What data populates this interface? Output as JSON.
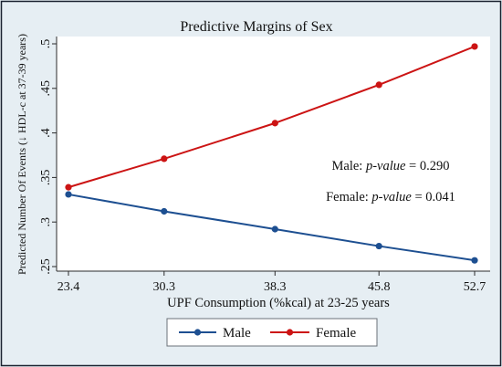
{
  "chart_data": {
    "type": "line",
    "title": "Predictive Margins of Sex",
    "xlabel": "UPF Consumption (%kcal) at 23-25 years",
    "ylabel": "Predicted Number Of Events (↓ HDL-c at 37-39 years)",
    "x": [
      23.4,
      30.3,
      38.3,
      45.8,
      52.7
    ],
    "xticks": [
      23.4,
      30.3,
      38.3,
      45.8,
      52.7
    ],
    "xticklabels": [
      "23.4",
      "30.3",
      "38.3",
      "45.8",
      "52.7"
    ],
    "xlim": [
      23.4,
      52.7
    ],
    "yticks": [
      0.25,
      0.3,
      0.35,
      0.4,
      0.45,
      0.5
    ],
    "yticklabels": [
      ".25",
      ".3",
      ".35",
      ".4",
      ".45",
      ".5"
    ],
    "ylim": [
      0.25,
      0.5
    ],
    "grid": false,
    "legend_position": "bottom",
    "series": [
      {
        "name": "Male",
        "color": "#1d4f91",
        "values": [
          0.331,
          0.312,
          0.292,
          0.273,
          0.257
        ]
      },
      {
        "name": "Female",
        "color": "#cc1414",
        "values": [
          0.339,
          0.371,
          0.411,
          0.454,
          0.497
        ]
      }
    ],
    "annotations": [
      {
        "label": "Male:",
        "stat": "p-value",
        "equals": "= 0.290"
      },
      {
        "label": "Female:",
        "stat": "p-value",
        "equals": "= 0.041"
      }
    ]
  },
  "colors": {
    "graph_background": "#e6eef3",
    "plot_background": "#ffffff"
  }
}
